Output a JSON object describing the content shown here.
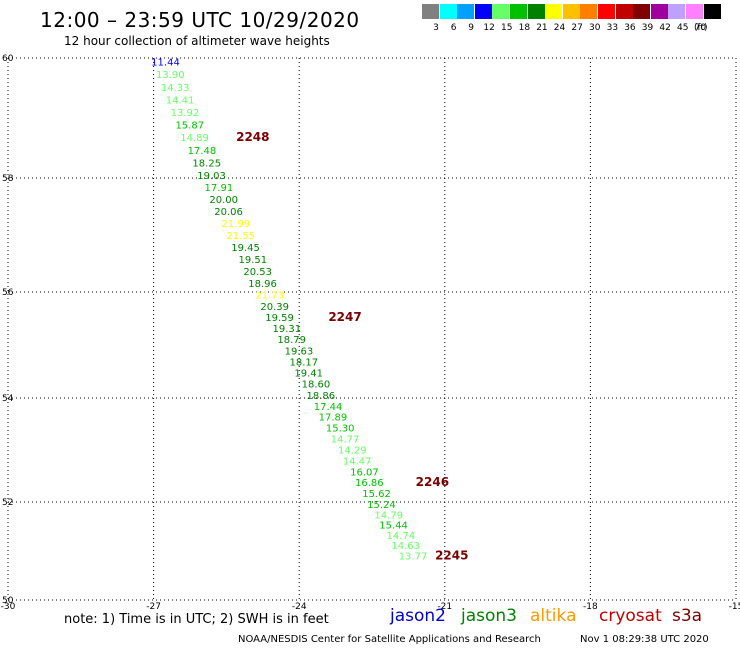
{
  "header": {
    "title": "12:00 – 23:59 UTC 10/29/2020",
    "subtitle": "12 hour collection of altimeter wave heights"
  },
  "color_scale": {
    "unit": "(ft)",
    "bins": [
      {
        "label": "3",
        "color": "#808080"
      },
      {
        "label": "6",
        "color": "#00ffff"
      },
      {
        "label": "9",
        "color": "#00a0ff"
      },
      {
        "label": "12",
        "color": "#0000ff"
      },
      {
        "label": "15",
        "color": "#66ff66"
      },
      {
        "label": "18",
        "color": "#00c000"
      },
      {
        "label": "21",
        "color": "#008000"
      },
      {
        "label": "24",
        "color": "#ffff00"
      },
      {
        "label": "27",
        "color": "#ffc000"
      },
      {
        "label": "30",
        "color": "#ff8000"
      },
      {
        "label": "33",
        "color": "#ff0000"
      },
      {
        "label": "36",
        "color": "#c00000"
      },
      {
        "label": "39",
        "color": "#800000"
      },
      {
        "label": "42",
        "color": "#a000a0"
      },
      {
        "label": "45",
        "color": "#c0a0ff"
      },
      {
        "label": "70",
        "color": "#ff80ff"
      },
      {
        "label": "",
        "color": "#000000"
      }
    ]
  },
  "axes": {
    "lon_ticks": [
      "-30",
      "-27",
      "-24",
      "-21",
      "-18",
      "-15"
    ],
    "lat_ticks": [
      "60",
      "58",
      "56",
      "54",
      "52",
      "50"
    ],
    "lon_range": [
      -30,
      -15
    ],
    "lat_range": [
      50,
      60
    ]
  },
  "observations": [
    {
      "lon": -27.05,
      "lat": 59.94,
      "swh": "11.44"
    },
    {
      "lon": -26.95,
      "lat": 59.73,
      "swh": "13.90"
    },
    {
      "lon": -26.85,
      "lat": 59.52,
      "swh": "14.33"
    },
    {
      "lon": -26.75,
      "lat": 59.31,
      "swh": "14.41"
    },
    {
      "lon": -26.65,
      "lat": 59.1,
      "swh": "13.92"
    },
    {
      "lon": -26.55,
      "lat": 58.89,
      "swh": "15.87"
    },
    {
      "lon": -26.45,
      "lat": 58.68,
      "swh": "14.89"
    },
    {
      "lon": -26.3,
      "lat": 58.47,
      "swh": "17.48"
    },
    {
      "lon": -26.2,
      "lat": 58.26,
      "swh": "18.25"
    },
    {
      "lon": -26.1,
      "lat": 58.05,
      "swh": "19.03"
    },
    {
      "lon": -25.95,
      "lat": 57.84,
      "swh": "17.91"
    },
    {
      "lon": -25.85,
      "lat": 57.63,
      "swh": "20.00"
    },
    {
      "lon": -25.75,
      "lat": 57.42,
      "swh": "20.06"
    },
    {
      "lon": -25.6,
      "lat": 57.21,
      "swh": "21.99"
    },
    {
      "lon": -25.5,
      "lat": 57.0,
      "swh": "21.55"
    },
    {
      "lon": -25.4,
      "lat": 56.79,
      "swh": "19.45"
    },
    {
      "lon": -25.25,
      "lat": 56.58,
      "swh": "19.51"
    },
    {
      "lon": -25.15,
      "lat": 56.37,
      "swh": "20.53"
    },
    {
      "lon": -25.05,
      "lat": 56.16,
      "swh": "18.96"
    },
    {
      "lon": -24.9,
      "lat": 55.95,
      "swh": "21.73"
    },
    {
      "lon": -24.8,
      "lat": 55.74,
      "swh": "20.39"
    },
    {
      "lon": -24.7,
      "lat": 55.53,
      "swh": "19.59"
    },
    {
      "lon": -24.55,
      "lat": 55.32,
      "swh": "19.31"
    },
    {
      "lon": -24.45,
      "lat": 55.11,
      "swh": "18.79"
    },
    {
      "lon": -24.3,
      "lat": 54.9,
      "swh": "19.63"
    },
    {
      "lon": -24.2,
      "lat": 54.69,
      "swh": "18.17"
    },
    {
      "lon": -24.1,
      "lat": 54.48,
      "swh": "19.41"
    },
    {
      "lon": -23.95,
      "lat": 54.27,
      "swh": "18.60"
    },
    {
      "lon": -23.85,
      "lat": 54.06,
      "swh": "18.86"
    },
    {
      "lon": -23.7,
      "lat": 53.85,
      "swh": "17.44"
    },
    {
      "lon": -23.6,
      "lat": 53.64,
      "swh": "17.89"
    },
    {
      "lon": -23.45,
      "lat": 53.43,
      "swh": "15.30"
    },
    {
      "lon": -23.35,
      "lat": 53.22,
      "swh": "14.77"
    },
    {
      "lon": -23.2,
      "lat": 53.01,
      "swh": "14.29"
    },
    {
      "lon": -23.1,
      "lat": 52.8,
      "swh": "14.47"
    },
    {
      "lon": -22.95,
      "lat": 52.59,
      "swh": "16.07"
    },
    {
      "lon": -22.85,
      "lat": 52.38,
      "swh": "16.86"
    },
    {
      "lon": -22.7,
      "lat": 52.17,
      "swh": "15.62"
    },
    {
      "lon": -22.6,
      "lat": 51.96,
      "swh": "15.24"
    },
    {
      "lon": -22.45,
      "lat": 51.75,
      "swh": "14.79"
    },
    {
      "lon": -22.35,
      "lat": 51.54,
      "swh": "15.44"
    },
    {
      "lon": -22.2,
      "lat": 51.33,
      "swh": "14.74"
    },
    {
      "lon": -22.1,
      "lat": 51.12,
      "swh": "14.63"
    },
    {
      "lon": -21.95,
      "lat": 50.91,
      "swh": "13.77"
    }
  ],
  "pass_labels": [
    {
      "lon": -25.3,
      "lat": 58.68,
      "text": "2248"
    },
    {
      "lon": -23.4,
      "lat": 55.53,
      "text": "2247"
    },
    {
      "lon": -21.6,
      "lat": 52.38,
      "text": "2246"
    },
    {
      "lon": -21.2,
      "lat": 50.91,
      "text": "2245"
    }
  ],
  "footer": {
    "note": "note: 1) Time is in UTC; 2) SWH is in feet",
    "missions": [
      {
        "name": "jason2",
        "color": "#0000cc"
      },
      {
        "name": "jason3",
        "color": "#008000"
      },
      {
        "name": "altika",
        "color": "#ff9900"
      },
      {
        "name": "cryosat",
        "color": "#c00000"
      },
      {
        "name": "s3a",
        "color": "#7a0000"
      }
    ],
    "credit": "NOAA/NESDIS Center for Satellite Applications and Research",
    "timestamp": "Nov  1 08:29:38 UTC 2020"
  }
}
